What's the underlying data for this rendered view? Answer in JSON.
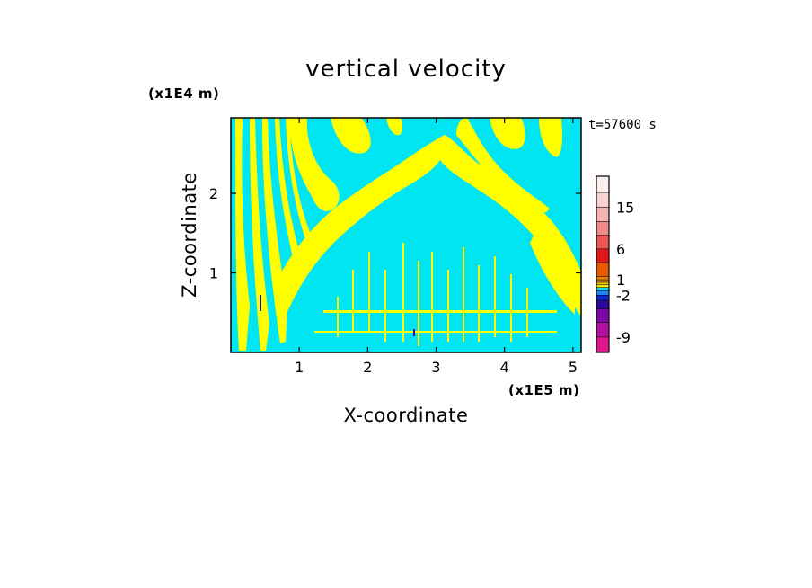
{
  "chart_data": {
    "type": "heatmap",
    "title": "vertical velocity",
    "xlabel": "X-coordinate",
    "ylabel": "Z-coordinate",
    "x_unit": "(x1E5 m)",
    "y_unit": "(x1E4 m)",
    "time_label": "t=57600 s",
    "xlim": [
      0,
      5.12
    ],
    "ylim": [
      0,
      2.95
    ],
    "x_ticks": [
      1,
      2,
      3,
      4,
      5
    ],
    "x_tick_labels": [
      "1",
      "2",
      "3",
      "4",
      "5"
    ],
    "y_ticks": [
      1,
      2
    ],
    "y_tick_labels": [
      "1",
      "2"
    ],
    "field_classes": {
      "positive": "1",
      "negative": "-2"
    },
    "colorbar": {
      "levels": [
        -12,
        -9,
        -6,
        -4,
        -3,
        -2,
        -1,
        -0.5,
        0,
        0.5,
        1,
        2,
        3,
        6,
        9,
        12,
        15,
        18,
        24
      ],
      "colors": [
        "#e0158f",
        "#b4109f",
        "#7a0aa8",
        "#2a0a9c",
        "#0a2ad8",
        "#1e86f5",
        "#17d5f2",
        "#ffff00",
        "#f0c800",
        "#e6a000",
        "#f08000",
        "#e85a00",
        "#e01818",
        "#ee5656",
        "#f28888",
        "#f5b2b2",
        "#f9d2d2",
        "#fdeeee"
      ],
      "tick_labels": [
        "-9",
        "-2",
        "1",
        "6",
        "15"
      ],
      "tick_values": [
        -9,
        -2,
        1,
        6,
        15
      ]
    },
    "colors": {
      "updraft": "#ffff00",
      "downdraft": "#00e5f2",
      "frame": "#000000"
    }
  }
}
